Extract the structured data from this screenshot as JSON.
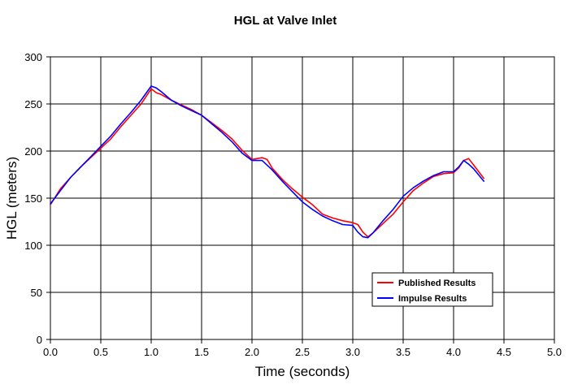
{
  "chart_data": {
    "type": "line",
    "title": "HGL  at Valve Inlet",
    "xlabel": "Time (seconds)",
    "ylabel": "HGL (meters)",
    "xlim": [
      0,
      5
    ],
    "ylim": [
      0,
      300
    ],
    "x_ticks": [
      "0.0",
      "0.5",
      "1.0",
      "1.5",
      "2.0",
      "2.5",
      "3.0",
      "3.5",
      "4.0",
      "4.5",
      "5.0"
    ],
    "y_ticks": [
      "0",
      "50",
      "100",
      "150",
      "200",
      "250",
      "300"
    ],
    "grid": true,
    "legend_position": "lower-right",
    "series": [
      {
        "name": "Published Results",
        "color": "#ff0000",
        "x": [
          0.0,
          0.1,
          0.2,
          0.3,
          0.4,
          0.5,
          0.6,
          0.7,
          0.8,
          0.9,
          1.0,
          1.05,
          1.1,
          1.2,
          1.3,
          1.4,
          1.5,
          1.6,
          1.7,
          1.8,
          1.9,
          2.0,
          2.05,
          2.1,
          2.15,
          2.2,
          2.3,
          2.4,
          2.5,
          2.6,
          2.7,
          2.8,
          2.9,
          3.0,
          3.05,
          3.1,
          3.15,
          3.2,
          3.3,
          3.4,
          3.5,
          3.6,
          3.7,
          3.8,
          3.9,
          4.0,
          4.05,
          4.1,
          4.15,
          4.2,
          4.3
        ],
        "y": [
          143,
          160,
          172,
          183,
          193,
          203,
          213,
          226,
          238,
          250,
          266,
          262,
          260,
          254,
          249,
          244,
          238,
          230,
          222,
          213,
          201,
          191,
          192,
          193,
          191,
          182,
          170,
          160,
          151,
          143,
          133,
          129,
          126,
          124,
          122,
          114,
          109,
          113,
          123,
          133,
          146,
          158,
          166,
          173,
          176,
          177,
          182,
          190,
          192,
          185,
          171
        ]
      },
      {
        "name": "Impulse Results",
        "color": "#0000ff",
        "x": [
          0.0,
          0.1,
          0.2,
          0.3,
          0.4,
          0.5,
          0.6,
          0.7,
          0.8,
          0.9,
          1.0,
          1.05,
          1.1,
          1.2,
          1.3,
          1.4,
          1.5,
          1.6,
          1.7,
          1.8,
          1.9,
          2.0,
          2.05,
          2.1,
          2.2,
          2.3,
          2.4,
          2.5,
          2.6,
          2.7,
          2.8,
          2.9,
          3.0,
          3.05,
          3.1,
          3.15,
          3.2,
          3.3,
          3.4,
          3.5,
          3.6,
          3.7,
          3.8,
          3.9,
          4.0,
          4.05,
          4.1,
          4.15,
          4.2,
          4.3
        ],
        "y": [
          144,
          158,
          172,
          183,
          194,
          205,
          216,
          229,
          241,
          254,
          269,
          267,
          263,
          254,
          248,
          243,
          238,
          229,
          220,
          210,
          198,
          190,
          190,
          190,
          180,
          168,
          157,
          146,
          138,
          131,
          126,
          122,
          121,
          114,
          109,
          108,
          113,
          126,
          138,
          152,
          161,
          168,
          174,
          178,
          178,
          183,
          190,
          186,
          181,
          168
        ]
      }
    ]
  }
}
